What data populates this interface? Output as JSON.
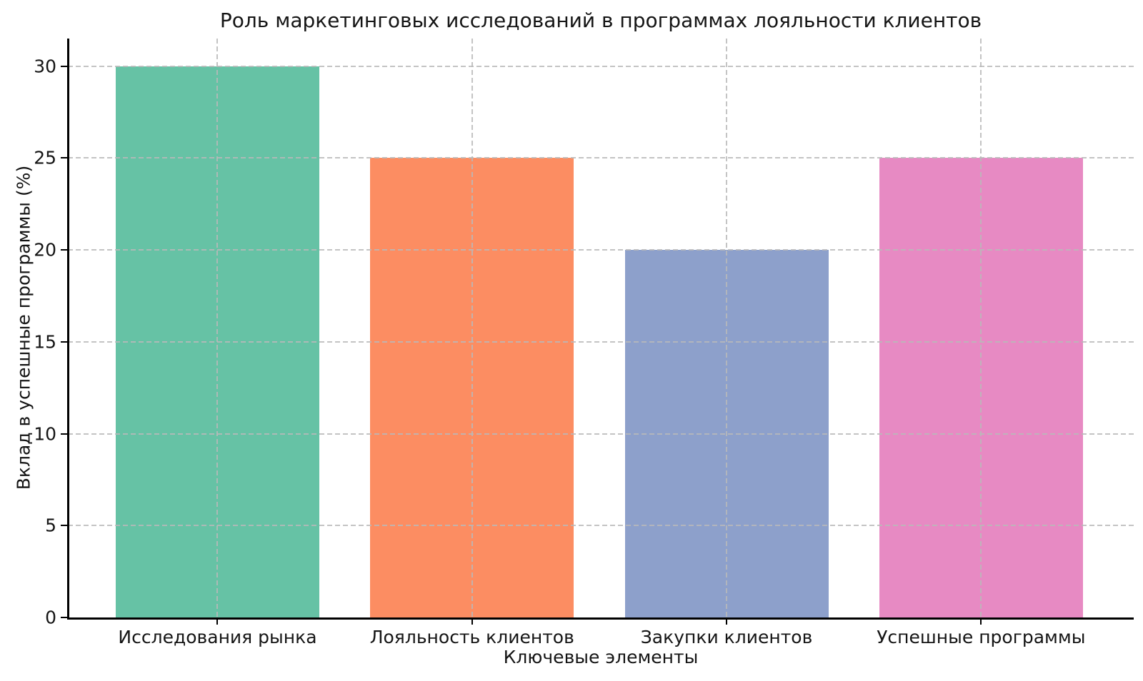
{
  "chart_data": {
    "type": "bar",
    "title": "Роль маркетинговых исследований в программах лояльности клиентов",
    "xlabel": "Ключевые элементы",
    "ylabel": "Вклад в успешные программы (%)",
    "categories": [
      "Исследования рынка",
      "Лояльность клиентов",
      "Закупки клиентов",
      "Успешные программы"
    ],
    "values": [
      30,
      25,
      20,
      25
    ],
    "bar_colors": [
      "#66c2a5",
      "#fc8d62",
      "#8da0cb",
      "#e78ac3"
    ],
    "ylim": [
      0,
      31.5
    ],
    "yticks": [
      0,
      5,
      10,
      15,
      20,
      25,
      30
    ],
    "grid": "dashed gridlines on both axes, drawn above bars",
    "legend": "none",
    "spine_color": "#000000",
    "background_color": "#ffffff",
    "text_color": "#151515"
  }
}
